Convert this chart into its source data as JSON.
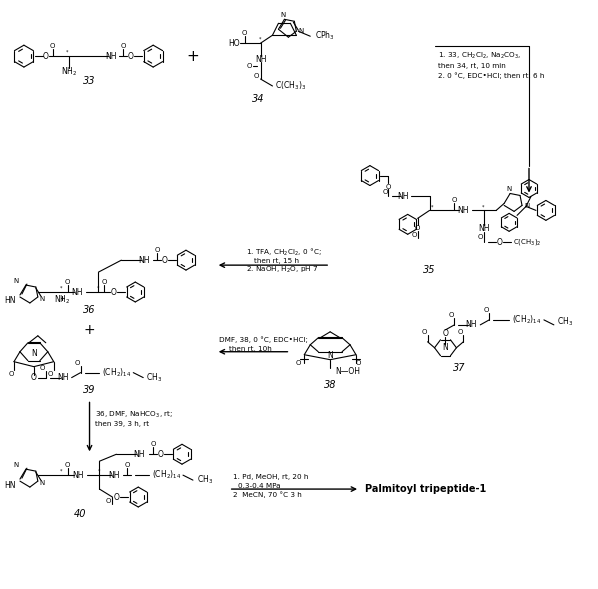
{
  "background_color": "#ffffff",
  "figure_width": 5.98,
  "figure_height": 5.89,
  "dpi": 100,
  "reagents_1": "1. 33, CH$_2$Cl$_2$, Na$_2$CO$_3$,\nthen 34, rt, 10 min\n2. 0 °C, EDC•HCl; then rt, 6 h",
  "reagents_2": "1. TFA, CH$_2$Cl$_2$, 0 °C;\nthen rt, 15 h\n2. NaOH, H$_2$O, pH 7",
  "reagents_3": "DMF, 38, 0 °C, EDC•HCl;\nthen rt, 10h",
  "reagents_4": "36, DMF, NaHCO$_3$, rt;\nthen 39, 3 h, rt",
  "reagents_5_line1": "1. Pd, MeOH, rt, 20 h",
  "reagents_5_line2": "0.3-0.4 MPa",
  "reagents_5_line3": "2  MeCN, 70 °C 3 h",
  "product": "Palmitoyl tripeptide-1"
}
